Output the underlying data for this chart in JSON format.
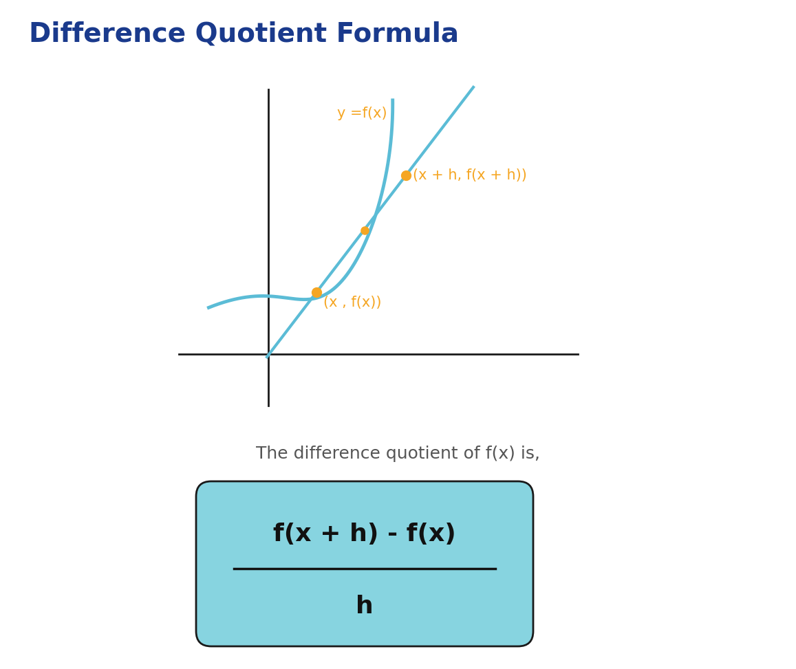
{
  "title": "Difference Quotient Formula",
  "title_color": "#1a3a8c",
  "title_fontsize": 28,
  "bg_color": "#ffffff",
  "curve_color": "#5bbcd6",
  "secant_color": "#5bbcd6",
  "point_color": "#f5a623",
  "label_color": "#f5a623",
  "axis_color": "#1a1a1a",
  "text_color": "#555555",
  "formula_bg": "#87d4e0",
  "formula_border": "#1a1a1a",
  "formula_text_color": "#111111",
  "desc_text": "The difference quotient of f(x) is,",
  "formula_numerator": "f(x + h) - f(x)",
  "formula_denominator": "h",
  "point1_label": "(x , f(x))",
  "point2_label": "(x + h, f(x + h))",
  "curve_label": "y =f(x)",
  "curve_lw": 3.5,
  "secant_lw": 3.0,
  "point_size": 10
}
